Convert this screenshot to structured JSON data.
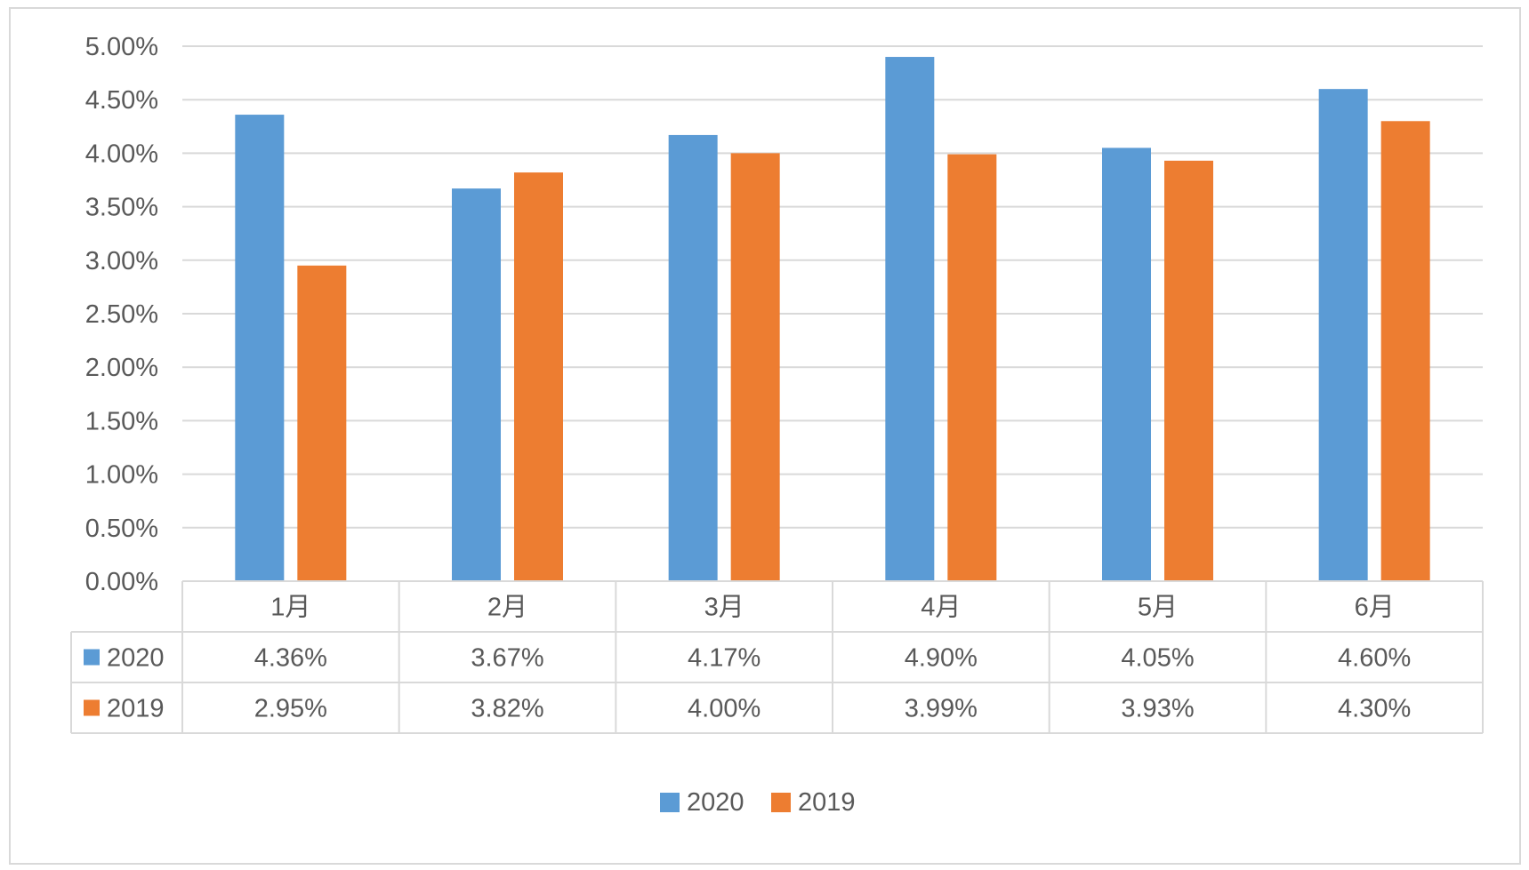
{
  "colors": {
    "series_2020": "#5b9bd5",
    "series_2019": "#ed7d31",
    "grid": "#d9d9d9",
    "text": "#595959"
  },
  "chart_data": {
    "type": "bar",
    "categories": [
      "1月",
      "2月",
      "3月",
      "4月",
      "5月",
      "6月"
    ],
    "series": [
      {
        "name": "2020",
        "values": [
          4.36,
          3.67,
          4.17,
          4.9,
          4.05,
          4.6
        ],
        "labels": [
          "4.36%",
          "3.67%",
          "4.17%",
          "4.90%",
          "4.05%",
          "4.60%"
        ]
      },
      {
        "name": "2019",
        "values": [
          2.95,
          3.82,
          4.0,
          3.99,
          3.93,
          4.3
        ],
        "labels": [
          "2.95%",
          "3.82%",
          "4.00%",
          "3.99%",
          "3.93%",
          "4.30%"
        ]
      }
    ],
    "y_ticks": [
      "0.00%",
      "0.50%",
      "1.00%",
      "1.50%",
      "2.00%",
      "2.50%",
      "3.00%",
      "3.50%",
      "4.00%",
      "4.50%",
      "5.00%"
    ],
    "ylim": [
      0,
      5
    ],
    "grid": true,
    "legend_position": "bottom",
    "data_table": true
  }
}
